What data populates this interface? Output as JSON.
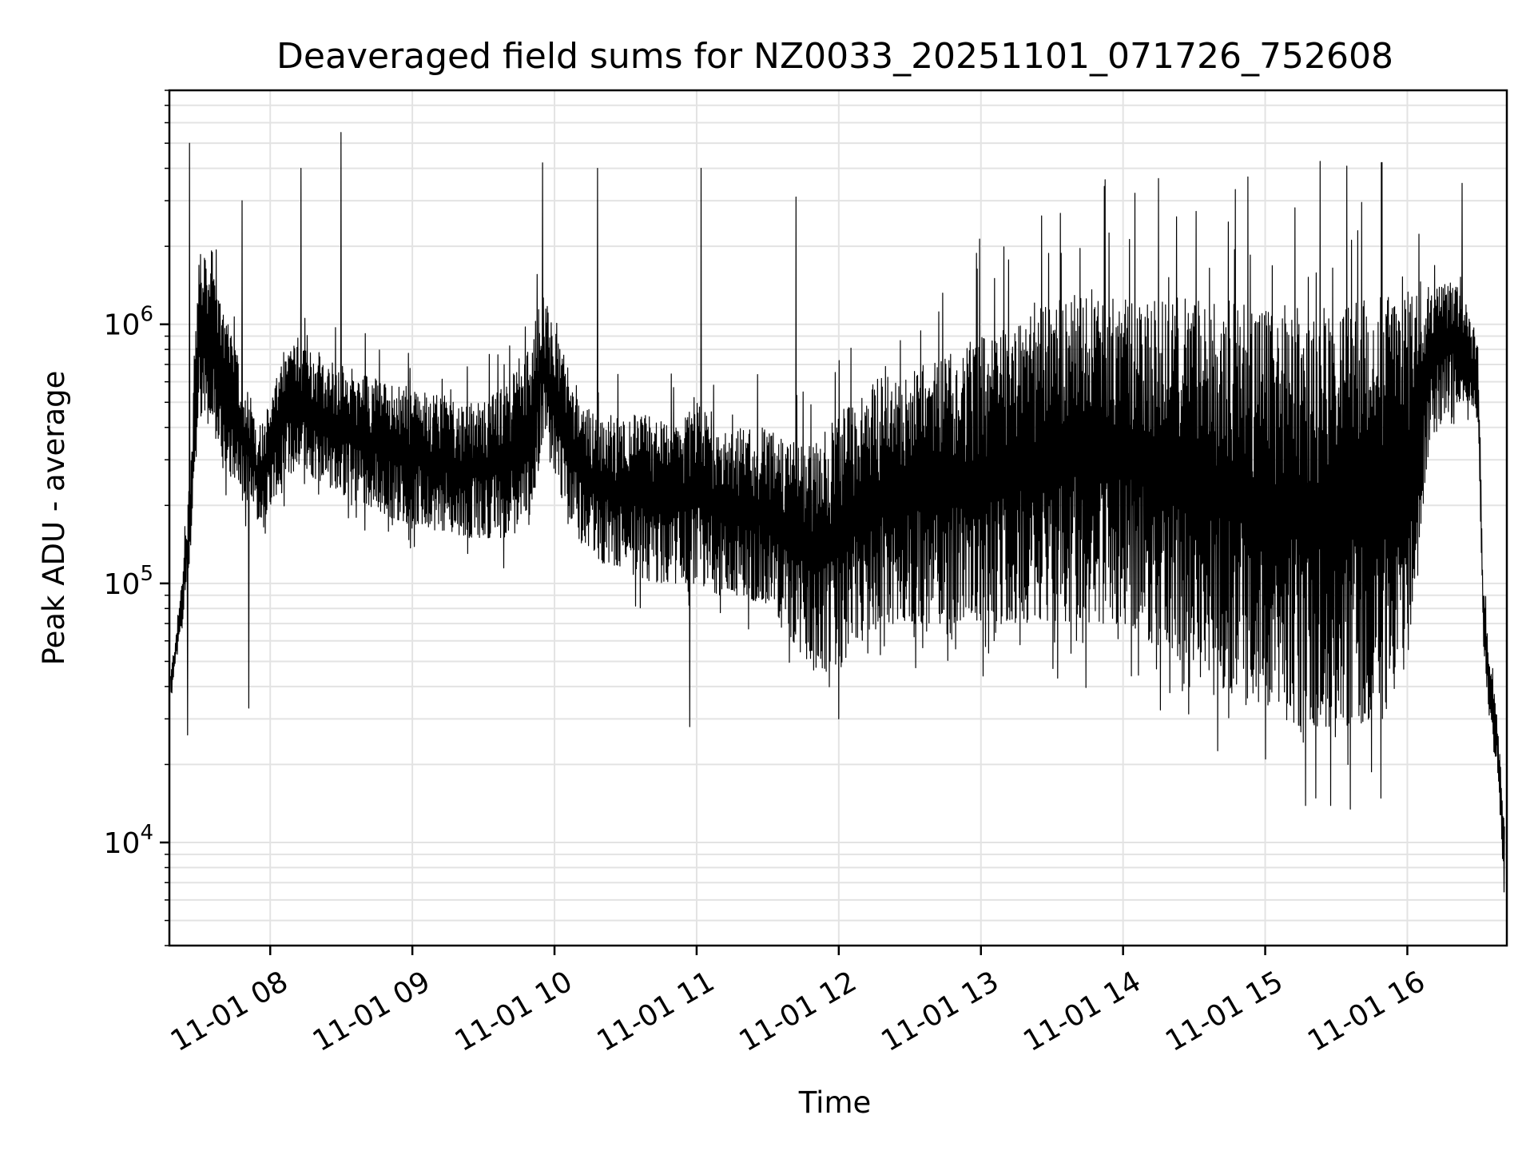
{
  "chart_data": {
    "type": "line",
    "title": "Deaveraged field sums for NZ0033_20251101_071726_752608",
    "xlabel": "Time",
    "ylabel": "Peak ADU - average",
    "x_axis": {
      "type": "datetime",
      "range": [
        "2025-11-01T07:17:26",
        "2025-11-01T16:42:00"
      ],
      "tick_labels": [
        "11-01 08",
        "11-01 09",
        "11-01 10",
        "11-01 11",
        "11-01 12",
        "11-01 13",
        "11-01 14",
        "11-01 15",
        "11-01 16"
      ],
      "tick_times": [
        "2025-11-01T08:00",
        "2025-11-01T09:00",
        "2025-11-01T10:00",
        "2025-11-01T11:00",
        "2025-11-01T12:00",
        "2025-11-01T13:00",
        "2025-11-01T14:00",
        "2025-11-01T15:00",
        "2025-11-01T16:00"
      ]
    },
    "y_axis": {
      "scale": "log",
      "range": [
        4000,
        8000000
      ],
      "ticks": [
        {
          "value": 10000,
          "base": "10",
          "exp": "4"
        },
        {
          "value": 100000,
          "base": "10",
          "exp": "5"
        },
        {
          "value": 1000000,
          "base": "10",
          "exp": "6"
        }
      ]
    },
    "grid": true,
    "legend": "none",
    "line_color": "#000000",
    "series": [
      {
        "x": [
          "2025-11-01T07:18",
          "2025-11-01T07:22",
          "2025-11-01T07:26",
          "2025-11-01T07:30",
          "2025-11-01T07:35",
          "2025-11-01T07:40",
          "2025-11-01T07:45",
          "2025-11-01T07:50",
          "2025-11-01T07:53",
          "2025-11-01T07:55",
          "2025-11-01T08:00",
          "2025-11-01T08:06",
          "2025-11-01T08:12",
          "2025-11-01T08:20",
          "2025-11-01T08:30",
          "2025-11-01T08:40",
          "2025-11-01T08:50",
          "2025-11-01T09:00",
          "2025-11-01T09:10",
          "2025-11-01T09:20",
          "2025-11-01T09:30",
          "2025-11-01T09:40",
          "2025-11-01T09:50",
          "2025-11-01T09:55",
          "2025-11-01T10:00",
          "2025-11-01T10:10",
          "2025-11-01T10:20",
          "2025-11-01T10:30",
          "2025-11-01T10:40",
          "2025-11-01T10:50",
          "2025-11-01T11:00",
          "2025-11-01T11:10",
          "2025-11-01T11:20",
          "2025-11-01T11:30",
          "2025-11-01T11:40",
          "2025-11-01T11:50",
          "2025-11-01T12:00",
          "2025-11-01T12:10",
          "2025-11-01T12:20",
          "2025-11-01T12:30",
          "2025-11-01T12:40",
          "2025-11-01T12:50",
          "2025-11-01T13:00",
          "2025-11-01T13:10",
          "2025-11-01T13:20",
          "2025-11-01T13:30",
          "2025-11-01T13:40",
          "2025-11-01T13:50",
          "2025-11-01T14:00",
          "2025-11-01T14:10",
          "2025-11-01T14:20",
          "2025-11-01T14:30",
          "2025-11-01T14:40",
          "2025-11-01T14:50",
          "2025-11-01T15:00",
          "2025-11-01T15:10",
          "2025-11-01T15:20",
          "2025-11-01T15:30",
          "2025-11-01T15:40",
          "2025-11-01T15:50",
          "2025-11-01T16:00",
          "2025-11-01T16:10",
          "2025-11-01T16:20",
          "2025-11-01T16:25",
          "2025-11-01T16:30",
          "2025-11-01T16:32",
          "2025-11-01T16:35",
          "2025-11-01T16:38",
          "2025-11-01T16:41"
        ],
        "y_upper": [
          45000,
          90000,
          250000,
          2000000,
          1600000,
          1200000,
          800000,
          600000,
          500000,
          400000,
          500000,
          800000,
          900000,
          750000,
          700000,
          650000,
          600000,
          550000,
          550000,
          500000,
          500000,
          600000,
          800000,
          1500000,
          1000000,
          500000,
          450000,
          450000,
          450000,
          400000,
          500000,
          400000,
          400000,
          400000,
          350000,
          350000,
          450000,
          600000,
          650000,
          650000,
          700000,
          800000,
          900000,
          1000000,
          1100000,
          1200000,
          1300000,
          1300000,
          1300000,
          1300000,
          1300000,
          1250000,
          1250000,
          1250000,
          1200000,
          1200000,
          1200000,
          1200000,
          1250000,
          1300000,
          1350000,
          1400000,
          1500000,
          1300000,
          800000,
          100000,
          50000,
          30000,
          12000
        ],
        "y_lower": [
          35000,
          60000,
          120000,
          450000,
          400000,
          300000,
          250000,
          200000,
          180000,
          160000,
          200000,
          250000,
          280000,
          250000,
          220000,
          200000,
          180000,
          170000,
          160000,
          150000,
          150000,
          150000,
          170000,
          350000,
          250000,
          150000,
          120000,
          110000,
          100000,
          100000,
          100000,
          90000,
          90000,
          80000,
          60000,
          45000,
          45000,
          60000,
          70000,
          70000,
          70000,
          70000,
          70000,
          70000,
          70000,
          70000,
          70000,
          70000,
          70000,
          60000,
          55000,
          45000,
          40000,
          35000,
          30000,
          28000,
          28000,
          28000,
          28000,
          30000,
          50000,
          400000,
          500000,
          500000,
          400000,
          60000,
          25000,
          20000,
          6000
        ],
        "spikes": [
          {
            "x": "2025-11-01T07:26",
            "y": 5000000
          },
          {
            "x": "2025-11-01T07:48",
            "y": 3000000
          },
          {
            "x": "2025-11-01T08:13",
            "y": 4000000
          },
          {
            "x": "2025-11-01T08:30",
            "y": 5500000
          },
          {
            "x": "2025-11-01T09:55",
            "y": 4200000
          },
          {
            "x": "2025-11-01T10:18",
            "y": 4000000
          },
          {
            "x": "2025-11-01T11:02",
            "y": 4000000
          },
          {
            "x": "2025-11-01T11:42",
            "y": 3100000
          },
          {
            "x": "2025-11-01T16:23",
            "y": 3500000
          }
        ],
        "dips": [
          {
            "x": "2025-11-01T07:25",
            "y": 26000
          },
          {
            "x": "2025-11-01T07:51",
            "y": 33000
          },
          {
            "x": "2025-11-01T10:57",
            "y": 28000
          },
          {
            "x": "2025-11-01T12:00",
            "y": 30000
          },
          {
            "x": "2025-11-01T15:00",
            "y": 21000
          },
          {
            "x": "2025-11-01T15:35",
            "y": 20000
          }
        ]
      }
    ]
  }
}
